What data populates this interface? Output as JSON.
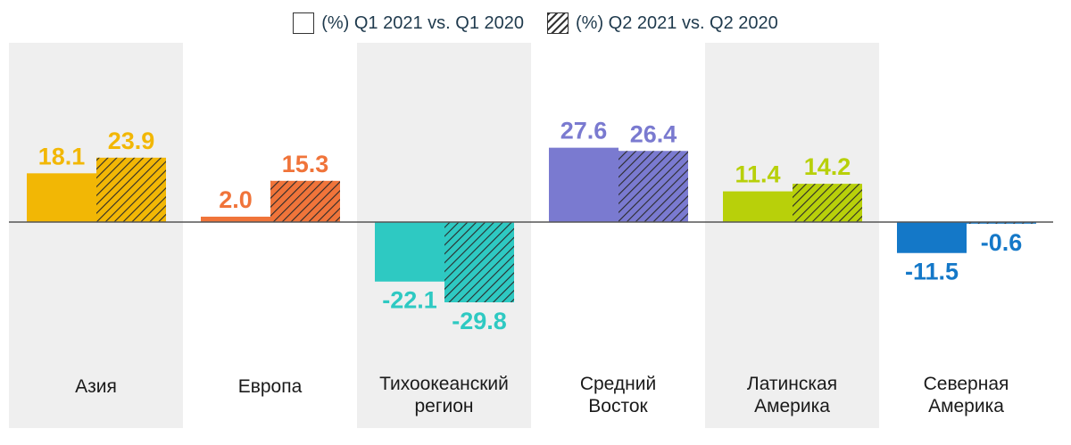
{
  "legend": {
    "q1_label": "(%) Q1 2021 vs. Q1 2020",
    "q2_label": "(%) Q2 2021 vs. Q2 2020"
  },
  "chart_data": {
    "type": "bar",
    "categories": [
      [
        "Азия"
      ],
      [
        "Европа"
      ],
      [
        "Тихоокеанский",
        "регион"
      ],
      [
        "Средний",
        "Восток"
      ],
      [
        "Латинская",
        "Америка"
      ],
      [
        "Северная",
        "Америка"
      ]
    ],
    "colors": [
      "#f2b705",
      "#f0743a",
      "#2ec9c2",
      "#7a7ad0",
      "#b8d00a",
      "#1478c8"
    ],
    "shaded_background": [
      true,
      false,
      true,
      false,
      true,
      false
    ],
    "series": [
      {
        "name": "(%) Q1 2021 vs. Q1 2020",
        "pattern": "solid",
        "values": [
          18.1,
          2.0,
          -22.1,
          27.6,
          11.4,
          -11.5
        ]
      },
      {
        "name": "(%) Q2 2021 vs. Q2 2020",
        "pattern": "hatched",
        "values": [
          23.9,
          15.3,
          -29.8,
          26.4,
          14.2,
          -0.6
        ]
      }
    ],
    "value_labels": [
      [
        "18.1",
        "23.9"
      ],
      [
        "2.0",
        "15.3"
      ],
      [
        "-22.1",
        "-29.8"
      ],
      [
        "27.6",
        "26.4"
      ],
      [
        "11.4",
        "14.2"
      ],
      [
        "-11.5",
        "-0.6"
      ]
    ],
    "ylim": [
      -35,
      35
    ],
    "grid": false,
    "legend_position": "top-center"
  }
}
